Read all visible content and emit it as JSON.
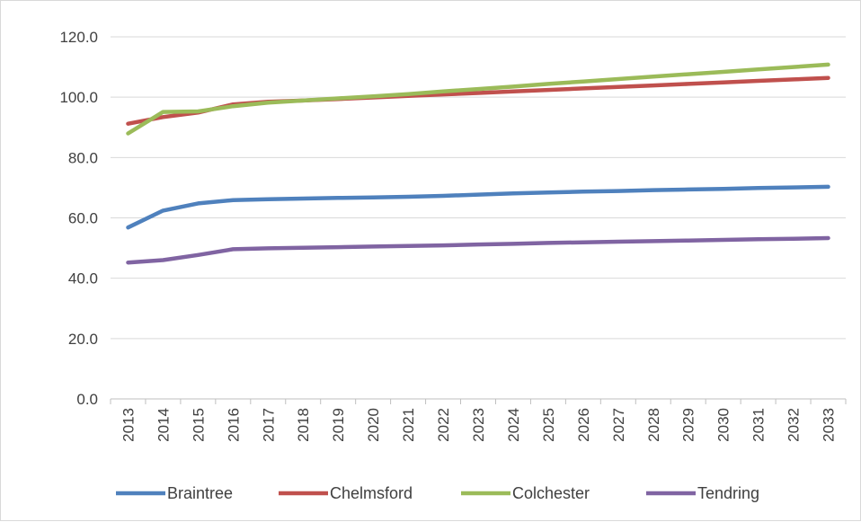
{
  "chart_data": {
    "type": "line",
    "title": "",
    "xlabel": "",
    "ylabel": "",
    "x": [
      "2013",
      "2014",
      "2015",
      "2016",
      "2017",
      "2018",
      "2019",
      "2020",
      "2021",
      "2022",
      "2023",
      "2024",
      "2025",
      "2026",
      "2027",
      "2028",
      "2029",
      "2030",
      "2031",
      "2032",
      "2033"
    ],
    "ylim": [
      0,
      120
    ],
    "yticks": [
      "0.0",
      "20.0",
      "40.0",
      "60.0",
      "80.0",
      "100.0",
      "120.0"
    ],
    "grid": "horizontal",
    "legend_position": "bottom",
    "series": [
      {
        "name": "Braintree",
        "color": "#4f81bd",
        "values": [
          56.8,
          62.4,
          64.8,
          65.9,
          66.2,
          66.4,
          66.6,
          66.8,
          67.0,
          67.3,
          67.7,
          68.1,
          68.4,
          68.7,
          68.9,
          69.2,
          69.4,
          69.6,
          69.9,
          70.1,
          70.3
        ]
      },
      {
        "name": "Chelmsford",
        "color": "#c0504d",
        "values": [
          91.2,
          93.4,
          94.9,
          97.6,
          98.5,
          98.9,
          99.4,
          99.9,
          100.4,
          100.9,
          101.4,
          101.9,
          102.4,
          102.9,
          103.4,
          103.9,
          104.4,
          104.9,
          105.4,
          105.9,
          106.4
        ]
      },
      {
        "name": "Colchester",
        "color": "#9bbb59",
        "values": [
          88.0,
          95.1,
          95.3,
          97.0,
          98.2,
          98.9,
          99.6,
          100.3,
          101.0,
          101.9,
          102.7,
          103.5,
          104.4,
          105.2,
          106.0,
          106.8,
          107.6,
          108.4,
          109.2,
          110.0,
          110.8
        ]
      },
      {
        "name": "Tendring",
        "color": "#8064a2",
        "values": [
          45.2,
          46.0,
          47.7,
          49.6,
          49.9,
          50.1,
          50.3,
          50.5,
          50.7,
          50.9,
          51.2,
          51.4,
          51.7,
          51.9,
          52.1,
          52.3,
          52.5,
          52.7,
          52.9,
          53.1,
          53.3
        ]
      }
    ]
  }
}
